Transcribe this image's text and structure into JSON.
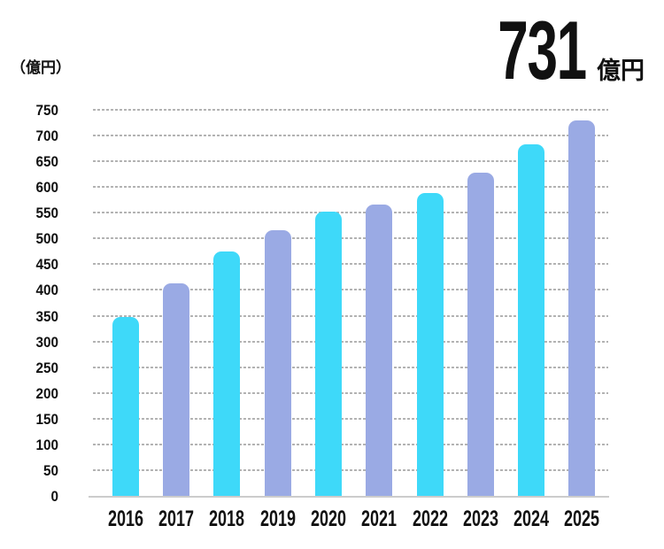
{
  "unit_label": "（億円）",
  "headline": {
    "value": "731",
    "unit": "億円"
  },
  "chart_data": {
    "type": "bar",
    "title": "731 億円",
    "categories": [
      "2016",
      "2017",
      "2018",
      "2019",
      "2020",
      "2021",
      "2022",
      "2023",
      "2024",
      "2025"
    ],
    "values": [
      350,
      414,
      476,
      517,
      554,
      567,
      590,
      630,
      684,
      731
    ],
    "xlabel": "",
    "ylabel": "（億円）",
    "ylim": [
      0,
      750
    ],
    "yticks": [
      0,
      50,
      100,
      150,
      200,
      250,
      300,
      350,
      400,
      450,
      500,
      550,
      600,
      650,
      700,
      750
    ],
    "grid": true,
    "grid_style": "dashed",
    "legend": false,
    "bar_colors_alternating": [
      "#3ED9F9",
      "#9AAAE4"
    ],
    "gridline_color": "#b3b3b3",
    "axis_line_color": "#cccccc",
    "text_color": "#111111"
  }
}
